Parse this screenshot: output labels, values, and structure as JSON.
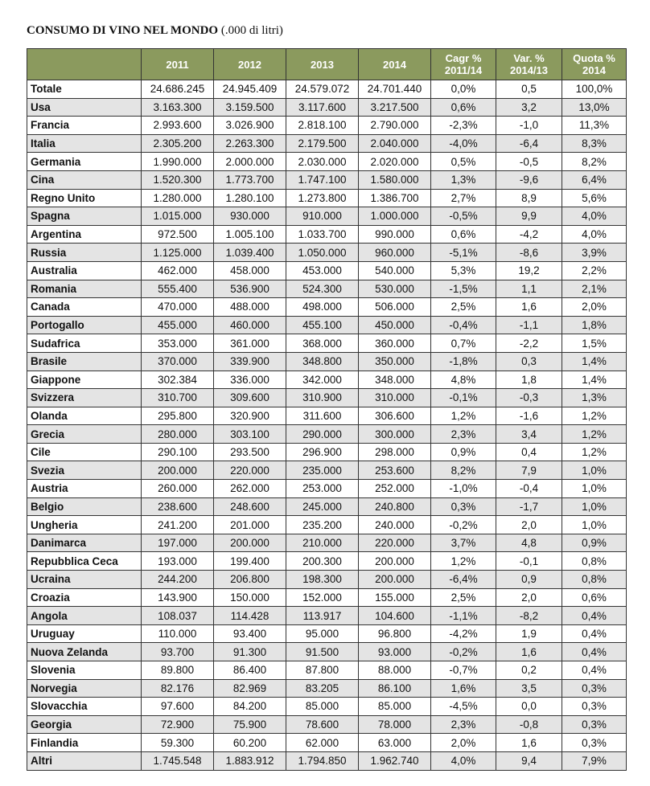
{
  "title": {
    "main": "CONSUMO DI VINO NEL MONDO",
    "unit": "(.000 di litri)"
  },
  "table": {
    "header": [
      [
        "2011"
      ],
      [
        "2012"
      ],
      [
        "2013"
      ],
      [
        "2014"
      ],
      [
        "Cagr %",
        "2011/14"
      ],
      [
        "Var. %",
        "2014/13"
      ],
      [
        "Quota %",
        "2014"
      ]
    ],
    "rows": [
      [
        "Totale",
        "24.686.245",
        "24.945.409",
        "24.579.072",
        "24.701.440",
        "0,0%",
        "0,5",
        "100,0%"
      ],
      [
        "Usa",
        "3.163.300",
        "3.159.500",
        "3.117.600",
        "3.217.500",
        "0,6%",
        "3,2",
        "13,0%"
      ],
      [
        "Francia",
        "2.993.600",
        "3.026.900",
        "2.818.100",
        "2.790.000",
        "-2,3%",
        "-1,0",
        "11,3%"
      ],
      [
        "Italia",
        "2.305.200",
        "2.263.300",
        "2.179.500",
        "2.040.000",
        "-4,0%",
        "-6,4",
        "8,3%"
      ],
      [
        "Germania",
        "1.990.000",
        "2.000.000",
        "2.030.000",
        "2.020.000",
        "0,5%",
        "-0,5",
        "8,2%"
      ],
      [
        "Cina",
        "1.520.300",
        "1.773.700",
        "1.747.100",
        "1.580.000",
        "1,3%",
        "-9,6",
        "6,4%"
      ],
      [
        "Regno Unito",
        "1.280.000",
        "1.280.100",
        "1.273.800",
        "1.386.700",
        "2,7%",
        "8,9",
        "5,6%"
      ],
      [
        "Spagna",
        "1.015.000",
        "930.000",
        "910.000",
        "1.000.000",
        "-0,5%",
        "9,9",
        "4,0%"
      ],
      [
        "Argentina",
        "972.500",
        "1.005.100",
        "1.033.700",
        "990.000",
        "0,6%",
        "-4,2",
        "4,0%"
      ],
      [
        "Russia",
        "1.125.000",
        "1.039.400",
        "1.050.000",
        "960.000",
        "-5,1%",
        "-8,6",
        "3,9%"
      ],
      [
        "Australia",
        "462.000",
        "458.000",
        "453.000",
        "540.000",
        "5,3%",
        "19,2",
        "2,2%"
      ],
      [
        "Romania",
        "555.400",
        "536.900",
        "524.300",
        "530.000",
        "-1,5%",
        "1,1",
        "2,1%"
      ],
      [
        "Canada",
        "470.000",
        "488.000",
        "498.000",
        "506.000",
        "2,5%",
        "1,6",
        "2,0%"
      ],
      [
        "Portogallo",
        "455.000",
        "460.000",
        "455.100",
        "450.000",
        "-0,4%",
        "-1,1",
        "1,8%"
      ],
      [
        "Sudafrica",
        "353.000",
        "361.000",
        "368.000",
        "360.000",
        "0,7%",
        "-2,2",
        "1,5%"
      ],
      [
        "Brasile",
        "370.000",
        "339.900",
        "348.800",
        "350.000",
        "-1,8%",
        "0,3",
        "1,4%"
      ],
      [
        "Giappone",
        "302.384",
        "336.000",
        "342.000",
        "348.000",
        "4,8%",
        "1,8",
        "1,4%"
      ],
      [
        "Svizzera",
        "310.700",
        "309.600",
        "310.900",
        "310.000",
        "-0,1%",
        "-0,3",
        "1,3%"
      ],
      [
        "Olanda",
        "295.800",
        "320.900",
        "311.600",
        "306.600",
        "1,2%",
        "-1,6",
        "1,2%"
      ],
      [
        "Grecia",
        "280.000",
        "303.100",
        "290.000",
        "300.000",
        "2,3%",
        "3,4",
        "1,2%"
      ],
      [
        "Cile",
        "290.100",
        "293.500",
        "296.900",
        "298.000",
        "0,9%",
        "0,4",
        "1,2%"
      ],
      [
        "Svezia",
        "200.000",
        "220.000",
        "235.000",
        "253.600",
        "8,2%",
        "7,9",
        "1,0%"
      ],
      [
        "Austria",
        "260.000",
        "262.000",
        "253.000",
        "252.000",
        "-1,0%",
        "-0,4",
        "1,0%"
      ],
      [
        "Belgio",
        "238.600",
        "248.600",
        "245.000",
        "240.800",
        "0,3%",
        "-1,7",
        "1,0%"
      ],
      [
        "Ungheria",
        "241.200",
        "201.000",
        "235.200",
        "240.000",
        "-0,2%",
        "2,0",
        "1,0%"
      ],
      [
        "Danimarca",
        "197.000",
        "200.000",
        "210.000",
        "220.000",
        "3,7%",
        "4,8",
        "0,9%"
      ],
      [
        "Repubblica Ceca",
        "193.000",
        "199.400",
        "200.300",
        "200.000",
        "1,2%",
        "-0,1",
        "0,8%"
      ],
      [
        "Ucraina",
        "244.200",
        "206.800",
        "198.300",
        "200.000",
        "-6,4%",
        "0,9",
        "0,8%"
      ],
      [
        "Croazia",
        "143.900",
        "150.000",
        "152.000",
        "155.000",
        "2,5%",
        "2,0",
        "0,6%"
      ],
      [
        "Angola",
        "108.037",
        "114.428",
        "113.917",
        "104.600",
        "-1,1%",
        "-8,2",
        "0,4%"
      ],
      [
        "Uruguay",
        "110.000",
        "93.400",
        "95.000",
        "96.800",
        "-4,2%",
        "1,9",
        "0,4%"
      ],
      [
        "Nuova Zelanda",
        "93.700",
        "91.300",
        "91.500",
        "93.000",
        "-0,2%",
        "1,6",
        "0,4%"
      ],
      [
        "Slovenia",
        "89.800",
        "86.400",
        "87.800",
        "88.000",
        "-0,7%",
        "0,2",
        "0,4%"
      ],
      [
        "Norvegia",
        "82.176",
        "82.969",
        "83.205",
        "86.100",
        "1,6%",
        "3,5",
        "0,3%"
      ],
      [
        "Slovacchia",
        "97.600",
        "84.200",
        "85.000",
        "85.000",
        "-4,5%",
        "0,0",
        "0,3%"
      ],
      [
        "Georgia",
        "72.900",
        "75.900",
        "78.600",
        "78.000",
        "2,3%",
        "-0,8",
        "0,3%"
      ],
      [
        "Finlandia",
        "59.300",
        "60.200",
        "62.000",
        "63.000",
        "2,0%",
        "1,6",
        "0,3%"
      ],
      [
        "Altri",
        "1.745.548",
        "1.883.912",
        "1.794.850",
        "1.962.740",
        "4,0%",
        "9,4",
        "7,9%"
      ]
    ]
  }
}
